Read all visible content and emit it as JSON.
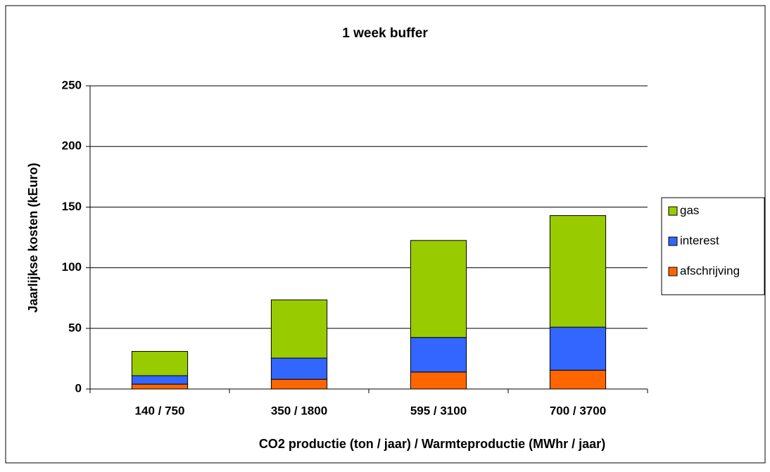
{
  "chart_data": {
    "type": "stacked_bar",
    "title": "1 week buffer",
    "x_label": "CO2 productie (ton / jaar) / Warmteproductie (MWhr / jaar)",
    "y_label": "Jaarlijkse kosten (kEuro)",
    "categories": [
      "140 / 750",
      "350 / 1800",
      "595 / 3100",
      "700 / 3700"
    ],
    "series": [
      {
        "name": "afschrijving",
        "color": "#ff6600",
        "values": [
          4,
          8,
          14,
          15.5
        ]
      },
      {
        "name": "interest",
        "color": "#3366ff",
        "values": [
          7,
          17.5,
          28.5,
          35.5
        ]
      },
      {
        "name": "gas",
        "color": "#99cc00",
        "values": [
          20,
          48,
          80,
          92
        ]
      }
    ],
    "ylim": [
      0,
      250
    ],
    "yticks": [
      0,
      50,
      100,
      150,
      200,
      250
    ],
    "grid": true,
    "legend": "right"
  }
}
